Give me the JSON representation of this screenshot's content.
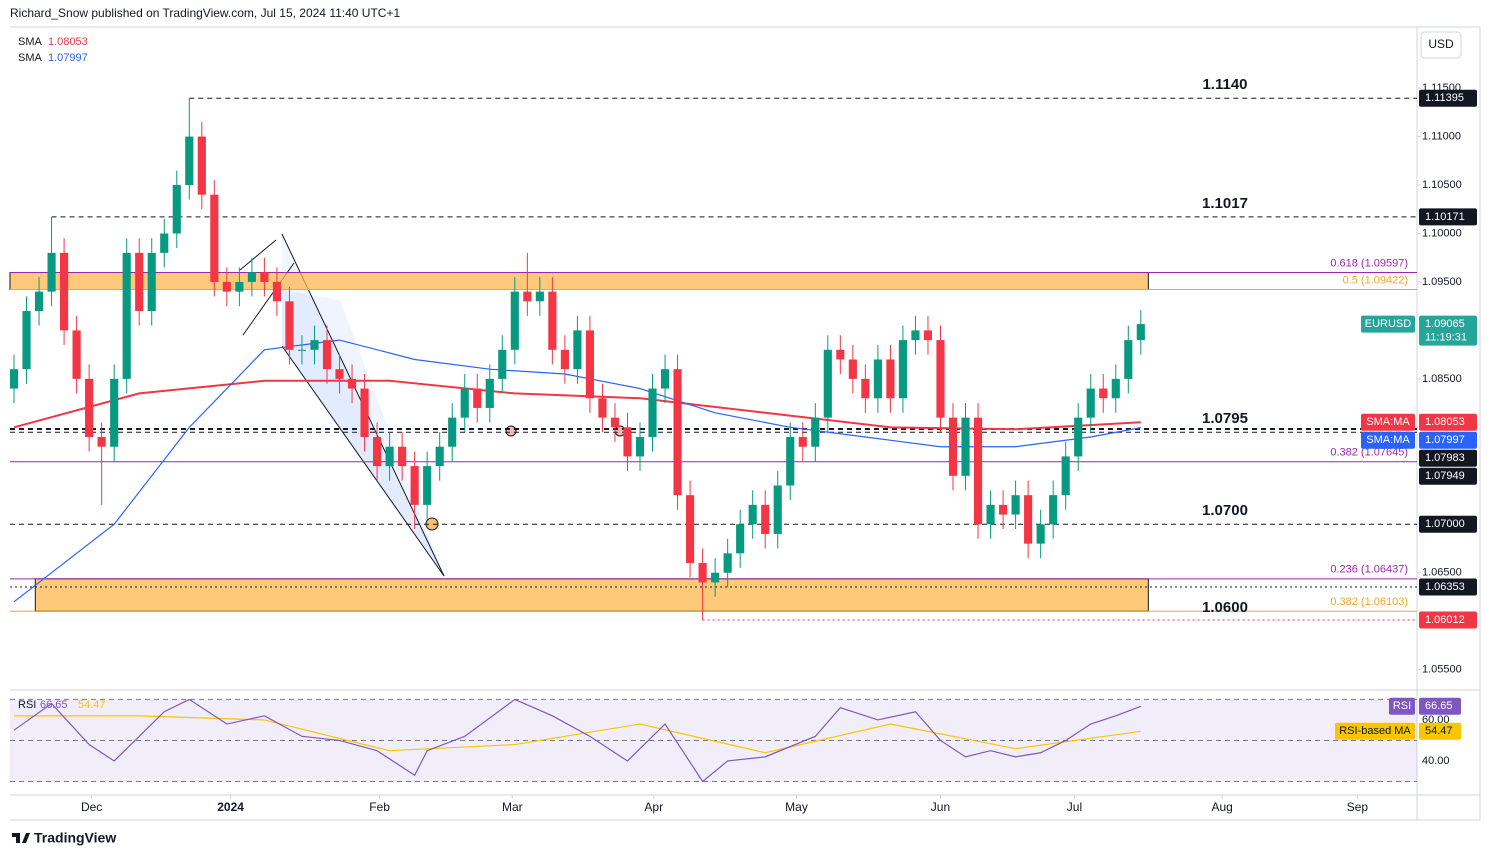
{
  "header": {
    "text": "Richard_Snow published on TradingView.com, Jul 15, 2024 11:40 UTC+1"
  },
  "footer": {
    "brand": "TradingView"
  },
  "chart_data": {
    "type": "candlestick",
    "currency": "USD",
    "up_color": "#089981",
    "down_color": "#f23645",
    "open": [
      1.084,
      1.086,
      1.092,
      1.094,
      1.098,
      1.09,
      1.085,
      1.079,
      1.078,
      1.085,
      1.098,
      1.092,
      1.098,
      1.1,
      1.105,
      1.11,
      1.104,
      1.095,
      1.094,
      1.095,
      1.096,
      1.095,
      1.093,
      1.088,
      1.088,
      1.089,
      1.086,
      1.085,
      1.084,
      1.079,
      1.076,
      1.078,
      1.076,
      1.072,
      1.076,
      1.078,
      1.081,
      1.084,
      1.082,
      1.085,
      1.088,
      1.094,
      1.093,
      1.094,
      1.088,
      1.086,
      1.09,
      1.083,
      1.081,
      1.08,
      1.077,
      1.079,
      1.084,
      1.086,
      1.073,
      1.066,
      1.064,
      1.065,
      1.067,
      1.07,
      1.072,
      1.069,
      1.074,
      1.079,
      1.078,
      1.081,
      1.088,
      1.087,
      1.085,
      1.083,
      1.087,
      1.083,
      1.089,
      1.09,
      1.089,
      1.081,
      1.075,
      1.081,
      1.07,
      1.072,
      1.071,
      1.073,
      1.068,
      1.07,
      1.073,
      1.077,
      1.081,
      1.084,
      1.083,
      1.085,
      1.089
    ],
    "high": [
      1.0875,
      1.0935,
      1.0955,
      1.1017,
      1.0995,
      1.0915,
      1.0865,
      1.0805,
      1.0865,
      1.0995,
      1.0995,
      1.0995,
      1.1015,
      1.1065,
      1.11395,
      1.1115,
      1.1055,
      1.0965,
      1.0965,
      1.0975,
      1.0975,
      1.0965,
      1.0945,
      1.0895,
      1.0905,
      1.0905,
      1.0875,
      1.0865,
      1.0855,
      1.0805,
      1.0795,
      1.0795,
      1.0775,
      1.0775,
      1.0795,
      1.0825,
      1.0855,
      1.0855,
      1.0865,
      1.0895,
      1.0955,
      1.098,
      1.0955,
      1.0955,
      1.0895,
      1.0915,
      1.0915,
      1.0845,
      1.0825,
      1.0815,
      1.0805,
      1.0855,
      1.0875,
      1.0875,
      1.0745,
      1.0675,
      1.0665,
      1.0685,
      1.0715,
      1.0735,
      1.0735,
      1.0755,
      1.0805,
      1.0805,
      1.0825,
      1.0895,
      1.0895,
      1.0885,
      1.0865,
      1.0885,
      1.0885,
      1.0905,
      1.0915,
      1.0915,
      1.0905,
      1.0825,
      1.0825,
      1.0825,
      1.0735,
      1.0735,
      1.0745,
      1.0745,
      1.0715,
      1.0745,
      1.0785,
      1.0825,
      1.0855,
      1.0855,
      1.0865,
      1.0905,
      1.0921
    ],
    "low": [
      1.0825,
      1.0845,
      1.0905,
      1.0925,
      1.0885,
      1.0835,
      1.0775,
      1.072,
      1.0765,
      1.0835,
      1.0905,
      1.0905,
      1.0965,
      1.0985,
      1.1035,
      1.1025,
      1.0935,
      1.0925,
      1.0925,
      1.0935,
      1.0935,
      1.0915,
      1.0865,
      1.0865,
      1.0865,
      1.0845,
      1.0835,
      1.0825,
      1.0775,
      1.0745,
      1.0745,
      1.0745,
      1.0695,
      1.0705,
      1.0745,
      1.0765,
      1.0795,
      1.0805,
      1.0805,
      1.0835,
      1.0865,
      1.0915,
      1.0915,
      1.0865,
      1.0845,
      1.0845,
      1.0815,
      1.0795,
      1.0785,
      1.0755,
      1.0755,
      1.0775,
      1.0825,
      1.0715,
      1.0645,
      1.06012,
      1.0625,
      1.0635,
      1.0655,
      1.0685,
      1.0675,
      1.0675,
      1.0725,
      1.0765,
      1.0765,
      1.0795,
      1.0855,
      1.0835,
      1.0815,
      1.0815,
      1.0815,
      1.0815,
      1.0875,
      1.0875,
      1.0795,
      1.0735,
      1.0735,
      1.0685,
      1.0685,
      1.0695,
      1.0695,
      1.0665,
      1.0665,
      1.0685,
      1.0715,
      1.0755,
      1.0795,
      1.0815,
      1.0815,
      1.0835,
      1.0875
    ],
    "close": [
      1.086,
      1.092,
      1.094,
      1.098,
      1.09,
      1.085,
      1.079,
      1.078,
      1.085,
      1.098,
      1.092,
      1.098,
      1.1,
      1.105,
      1.11,
      1.104,
      1.095,
      1.094,
      1.095,
      1.096,
      1.095,
      1.093,
      1.088,
      1.088,
      1.089,
      1.086,
      1.085,
      1.084,
      1.079,
      1.076,
      1.078,
      1.076,
      1.072,
      1.076,
      1.078,
      1.081,
      1.084,
      1.082,
      1.085,
      1.088,
      1.094,
      1.093,
      1.094,
      1.088,
      1.086,
      1.09,
      1.083,
      1.081,
      1.08,
      1.077,
      1.079,
      1.084,
      1.086,
      1.073,
      1.066,
      1.064,
      1.065,
      1.067,
      1.07,
      1.072,
      1.069,
      1.074,
      1.079,
      1.078,
      1.081,
      1.088,
      1.087,
      1.085,
      1.083,
      1.087,
      1.083,
      1.089,
      1.09,
      1.089,
      1.081,
      1.075,
      1.081,
      1.07,
      1.072,
      1.071,
      1.073,
      1.068,
      1.07,
      1.073,
      1.077,
      1.081,
      1.084,
      1.083,
      1.085,
      1.089,
      1.09065
    ],
    "xlim": [
      -0.32,
      112.06
    ],
    "xticks": [
      {
        "value": 6.2,
        "label": "Dec"
      },
      {
        "value": 17.3,
        "label": "2024"
      },
      {
        "value": 29.2,
        "label": "Feb"
      },
      {
        "value": 39.8,
        "label": "Mar"
      },
      {
        "value": 51.1,
        "label": "Apr"
      },
      {
        "value": 62.5,
        "label": "May"
      },
      {
        "value": 74.0,
        "label": "Jun"
      },
      {
        "value": 84.7,
        "label": "Jul"
      },
      {
        "value": 96.5,
        "label": "Aug"
      },
      {
        "value": 107.3,
        "label": "Sep"
      }
    ],
    "ylim": [
      1.0529,
      1.1212
    ],
    "yticks": [
      {
        "value": 1.115,
        "label": "1.11500"
      },
      {
        "value": 1.11,
        "label": "1.11000"
      },
      {
        "value": 1.105,
        "label": "1.10500"
      },
      {
        "value": 1.1,
        "label": "1.10000"
      },
      {
        "value": 1.095,
        "label": "1.09500"
      },
      {
        "value": 1.085,
        "label": "1.08500"
      },
      {
        "value": 1.065,
        "label": "1.06500"
      },
      {
        "value": 1.055,
        "label": "1.05500"
      }
    ],
    "sma": [
      {
        "name": "SMA",
        "color": "#f23645",
        "last": 1.08053,
        "x": [
          0,
          10,
          20,
          30,
          40,
          50,
          60,
          70,
          80,
          90
        ],
        "values": [
          1.08,
          1.0835,
          1.0848,
          1.0848,
          1.0835,
          1.083,
          1.0815,
          1.08,
          1.0798,
          1.08053
        ]
      },
      {
        "name": "SMA",
        "color": "#2962ff",
        "last": 1.07997,
        "x": [
          0,
          8,
          14,
          20,
          26,
          32,
          38,
          44,
          50,
          56,
          62,
          68,
          74,
          80,
          86,
          90
        ],
        "values": [
          1.062,
          1.07,
          1.08,
          1.088,
          1.089,
          1.087,
          1.086,
          1.0855,
          1.084,
          1.0815,
          1.08,
          1.079,
          1.078,
          1.078,
          1.079,
          1.07997
        ]
      }
    ],
    "zones": [
      {
        "low": 1.09422,
        "high": 1.09597,
        "x": [
          -0.32,
          90.6
        ]
      },
      {
        "low": 1.06103,
        "high": 1.06437,
        "x": [
          1.7,
          90.6
        ]
      }
    ],
    "fibs": [
      {
        "value": 1.09597,
        "label": "0.618 (1.09597)",
        "color": "#9c27b0"
      },
      {
        "value": 1.09422,
        "label": "0.5 (1.09422)",
        "color": "#f5a623"
      },
      {
        "value": 1.07645,
        "label": "0.382 (1.07645)",
        "color": "#9c27b0"
      },
      {
        "value": 1.06437,
        "label": "0.236 (1.06437)",
        "color": "#9c27b0"
      },
      {
        "value": 1.06103,
        "label": "0.382 (1.06103)",
        "color": "#f5a623"
      }
    ],
    "levels": [
      {
        "value": 1.114,
        "label": "1.1140"
      },
      {
        "value": 1.1017,
        "label": "1.1017"
      },
      {
        "value": 1.0795,
        "label": "1.0795"
      },
      {
        "value": 1.07,
        "label": "1.0700"
      },
      {
        "value": 1.06,
        "label": "1.0600"
      }
    ],
    "tags": [
      {
        "value": 1.11395,
        "label": "1.11395",
        "color": "#131722",
        "line": {
          "from": 14,
          "style": "dashed"
        }
      },
      {
        "value": 1.10171,
        "label": "1.10171",
        "color": "#131722",
        "line": {
          "from": 3,
          "style": "dashed"
        }
      },
      {
        "value": 1.09065,
        "label": "1.09065",
        "color": "#26a69a",
        "name": "EURUSD",
        "countdown": "11:19:31"
      },
      {
        "value": 1.08053,
        "label": "1.08053",
        "color": "#f23645",
        "name": "SMA:MA"
      },
      {
        "value": 1.07997,
        "label": "1.07997",
        "color": "#2962ff",
        "name": "SMA:MA"
      },
      {
        "value": 1.07983,
        "label": "1.07983",
        "color": "#131722",
        "line": {
          "from": -0.32,
          "style": "bold"
        }
      },
      {
        "value": 1.07949,
        "label": "1.07949",
        "color": "#131722",
        "line": {
          "from": -0.32,
          "style": "dashed"
        }
      },
      {
        "value": 1.07,
        "label": "1.07000",
        "color": "#131722",
        "line": {
          "from": -0.32,
          "style": "dashed"
        }
      },
      {
        "value": 1.06353,
        "label": "1.06353",
        "color": "#131722",
        "line": {
          "from": -0.32,
          "style": "dotted"
        }
      },
      {
        "value": 1.06012,
        "label": "1.06012",
        "color": "#f23645",
        "line": {
          "from": 55,
          "style": "dotted"
        }
      }
    ],
    "rsi": {
      "name": "RSI",
      "color": "#7e57c2",
      "last": 66.65,
      "ma_name": "RSI-based MA",
      "ma_color": "#f7c600",
      "ma_last": 54.47,
      "ylim": [
        23.4,
        74.6
      ],
      "yticks": [
        {
          "value": 60,
          "label": "60.00"
        },
        {
          "value": 40,
          "label": "40.00"
        }
      ],
      "levels": [
        70,
        50,
        30
      ],
      "x": [
        0,
        3,
        6,
        8,
        12,
        14,
        17,
        20,
        23,
        26,
        29,
        32,
        33,
        36,
        40,
        43,
        46,
        49,
        52,
        55,
        57,
        60,
        64,
        66,
        69,
        72,
        74,
        76,
        78,
        80,
        82,
        84,
        86,
        88,
        90
      ],
      "values": [
        55,
        68,
        48,
        40,
        64,
        70,
        58,
        62,
        52,
        50,
        45,
        33,
        45,
        52,
        70,
        62,
        52,
        40,
        58,
        30,
        40,
        42,
        52,
        66,
        60,
        64,
        50,
        42,
        45,
        42,
        44,
        50,
        58,
        62,
        66.65
      ],
      "ma_x": [
        0,
        10,
        20,
        30,
        40,
        50,
        60,
        70,
        80,
        90
      ],
      "ma_values": [
        62,
        62,
        60,
        45,
        48,
        58,
        44,
        58,
        46,
        54.47
      ]
    }
  }
}
